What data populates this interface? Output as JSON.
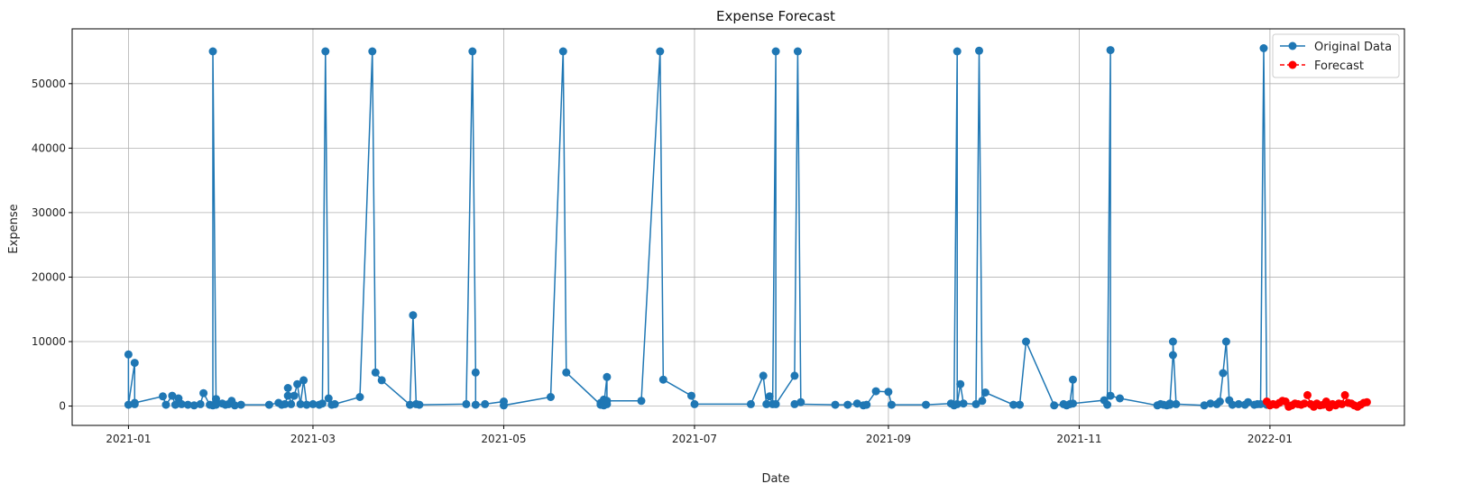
{
  "chart_data": {
    "type": "line",
    "title": "Expense Forecast",
    "xlabel": "Date",
    "ylabel": "Expense",
    "xlim": [
      "2020-12-14",
      "2022-02-13"
    ],
    "ylim": [
      -3000,
      58500
    ],
    "grid": true,
    "legend_position": "top-right",
    "x_ticks": [
      "2021-01",
      "2021-03",
      "2021-05",
      "2021-07",
      "2021-09",
      "2021-11",
      "2022-01"
    ],
    "y_ticks": [
      0,
      10000,
      20000,
      30000,
      40000,
      50000
    ],
    "series": [
      {
        "name": "Original Data",
        "color": "#1f77b4",
        "line_style": "solid",
        "marker": "circle",
        "points": [
          [
            "2021-01-01",
            8000
          ],
          [
            "2021-01-01",
            200
          ],
          [
            "2021-01-03",
            6700
          ],
          [
            "2021-01-03",
            300
          ],
          [
            "2021-01-03",
            500
          ],
          [
            "2021-01-12",
            1500
          ],
          [
            "2021-01-13",
            200
          ],
          [
            "2021-01-15",
            1600
          ],
          [
            "2021-01-16",
            200
          ],
          [
            "2021-01-17",
            1200
          ],
          [
            "2021-01-18",
            300
          ],
          [
            "2021-01-20",
            200
          ],
          [
            "2021-01-22",
            100
          ],
          [
            "2021-01-24",
            300
          ],
          [
            "2021-01-25",
            2000
          ],
          [
            "2021-01-27",
            200
          ],
          [
            "2021-01-28",
            100
          ],
          [
            "2021-01-28",
            55000
          ],
          [
            "2021-01-29",
            1100
          ],
          [
            "2021-01-29",
            200
          ],
          [
            "2021-01-31",
            400
          ],
          [
            "2021-02-01",
            200
          ],
          [
            "2021-02-02",
            300
          ],
          [
            "2021-02-03",
            800
          ],
          [
            "2021-02-04",
            100
          ],
          [
            "2021-02-06",
            200
          ],
          [
            "2021-02-15",
            200
          ],
          [
            "2021-02-18",
            500
          ],
          [
            "2021-02-19",
            200
          ],
          [
            "2021-02-20",
            300
          ],
          [
            "2021-02-21",
            1600
          ],
          [
            "2021-02-21",
            2800
          ],
          [
            "2021-02-22",
            300
          ],
          [
            "2021-02-23",
            1600
          ],
          [
            "2021-02-24",
            3400
          ],
          [
            "2021-02-25",
            300
          ],
          [
            "2021-02-26",
            4000
          ],
          [
            "2021-02-27",
            200
          ],
          [
            "2021-03-01",
            300
          ],
          [
            "2021-03-03",
            200
          ],
          [
            "2021-03-04",
            400
          ],
          [
            "2021-03-05",
            55000
          ],
          [
            "2021-03-06",
            1200
          ],
          [
            "2021-03-07",
            200
          ],
          [
            "2021-03-08",
            300
          ],
          [
            "2021-03-16",
            1400
          ],
          [
            "2021-03-20",
            55000
          ],
          [
            "2021-03-21",
            5200
          ],
          [
            "2021-03-23",
            4000
          ],
          [
            "2021-04-01",
            200
          ],
          [
            "2021-04-02",
            14100
          ],
          [
            "2021-04-03",
            300
          ],
          [
            "2021-04-04",
            200
          ],
          [
            "2021-04-19",
            300
          ],
          [
            "2021-04-21",
            55000
          ],
          [
            "2021-04-22",
            5200
          ],
          [
            "2021-04-22",
            200
          ],
          [
            "2021-04-25",
            300
          ],
          [
            "2021-05-01",
            700
          ],
          [
            "2021-05-01",
            100
          ],
          [
            "2021-05-16",
            1400
          ],
          [
            "2021-05-20",
            55000
          ],
          [
            "2021-05-21",
            5200
          ],
          [
            "2021-06-01",
            200
          ],
          [
            "2021-06-01",
            500
          ],
          [
            "2021-06-02",
            1000
          ],
          [
            "2021-06-02",
            100
          ],
          [
            "2021-06-03",
            4500
          ],
          [
            "2021-06-03",
            300
          ],
          [
            "2021-06-03",
            800
          ],
          [
            "2021-06-14",
            800
          ],
          [
            "2021-06-20",
            55000
          ],
          [
            "2021-06-21",
            4100
          ],
          [
            "2021-06-30",
            1600
          ],
          [
            "2021-07-01",
            300
          ],
          [
            "2021-07-19",
            300
          ],
          [
            "2021-07-23",
            4700
          ],
          [
            "2021-07-24",
            300
          ],
          [
            "2021-07-25",
            1500
          ],
          [
            "2021-07-26",
            300
          ],
          [
            "2021-07-27",
            55000
          ],
          [
            "2021-07-27",
            300
          ],
          [
            "2021-08-02",
            4700
          ],
          [
            "2021-08-03",
            55000
          ],
          [
            "2021-08-04",
            600
          ],
          [
            "2021-08-02",
            300
          ],
          [
            "2021-08-15",
            200
          ],
          [
            "2021-08-19",
            200
          ],
          [
            "2021-08-22",
            400
          ],
          [
            "2021-08-24",
            100
          ],
          [
            "2021-08-25",
            200
          ],
          [
            "2021-08-28",
            2300
          ],
          [
            "2021-09-01",
            2200
          ],
          [
            "2021-09-02",
            200
          ],
          [
            "2021-09-13",
            200
          ],
          [
            "2021-09-21",
            400
          ],
          [
            "2021-09-22",
            100
          ],
          [
            "2021-09-23",
            55000
          ],
          [
            "2021-09-23",
            300
          ],
          [
            "2021-09-24",
            3400
          ],
          [
            "2021-09-25",
            400
          ],
          [
            "2021-09-29",
            300
          ],
          [
            "2021-09-30",
            55100
          ],
          [
            "2021-10-01",
            800
          ],
          [
            "2021-10-02",
            2100
          ],
          [
            "2021-10-11",
            200
          ],
          [
            "2021-10-13",
            200
          ],
          [
            "2021-10-15",
            10000
          ],
          [
            "2021-10-24",
            100
          ],
          [
            "2021-10-27",
            300
          ],
          [
            "2021-10-28",
            100
          ],
          [
            "2021-10-29",
            300
          ],
          [
            "2021-10-30",
            4100
          ],
          [
            "2021-10-30",
            400
          ],
          [
            "2021-11-09",
            900
          ],
          [
            "2021-11-10",
            200
          ],
          [
            "2021-11-11",
            55200
          ],
          [
            "2021-11-11",
            1600
          ],
          [
            "2021-11-14",
            1200
          ],
          [
            "2021-11-26",
            100
          ],
          [
            "2021-11-27",
            300
          ],
          [
            "2021-11-28",
            200
          ],
          [
            "2021-11-29",
            100
          ],
          [
            "2021-11-30",
            400
          ],
          [
            "2021-11-30",
            200
          ],
          [
            "2021-12-01",
            7900
          ],
          [
            "2021-12-01",
            10000
          ],
          [
            "2021-12-02",
            300
          ],
          [
            "2021-12-11",
            100
          ],
          [
            "2021-12-13",
            400
          ],
          [
            "2021-12-15",
            300
          ],
          [
            "2021-12-16",
            700
          ],
          [
            "2021-12-17",
            5100
          ],
          [
            "2021-12-18",
            10000
          ],
          [
            "2021-12-19",
            900
          ],
          [
            "2021-12-20",
            200
          ],
          [
            "2021-12-22",
            300
          ],
          [
            "2021-12-24",
            200
          ],
          [
            "2021-12-25",
            600
          ],
          [
            "2021-12-27",
            200
          ],
          [
            "2021-12-28",
            300
          ],
          [
            "2021-12-29",
            300
          ],
          [
            "2021-12-30",
            55500
          ],
          [
            "2021-12-31",
            200
          ]
        ]
      },
      {
        "name": "Forecast",
        "color": "#ff0000",
        "line_style": "dashed",
        "marker": "circle",
        "points": [
          [
            "2021-12-31",
            700
          ],
          [
            "2022-01-01",
            100
          ],
          [
            "2022-01-02",
            300
          ],
          [
            "2022-01-03",
            200
          ],
          [
            "2022-01-04",
            500
          ],
          [
            "2022-01-05",
            800
          ],
          [
            "2022-01-06",
            700
          ],
          [
            "2022-01-07",
            -100
          ],
          [
            "2022-01-08",
            100
          ],
          [
            "2022-01-09",
            400
          ],
          [
            "2022-01-10",
            300
          ],
          [
            "2022-01-11",
            200
          ],
          [
            "2022-01-12",
            400
          ],
          [
            "2022-01-13",
            1700
          ],
          [
            "2022-01-14",
            300
          ],
          [
            "2022-01-15",
            -100
          ],
          [
            "2022-01-16",
            400
          ],
          [
            "2022-01-17",
            100
          ],
          [
            "2022-01-18",
            200
          ],
          [
            "2022-01-19",
            700
          ],
          [
            "2022-01-20",
            -200
          ],
          [
            "2022-01-21",
            300
          ],
          [
            "2022-01-22",
            100
          ],
          [
            "2022-01-23",
            400
          ],
          [
            "2022-01-24",
            300
          ],
          [
            "2022-01-25",
            1700
          ],
          [
            "2022-01-26",
            500
          ],
          [
            "2022-01-27",
            400
          ],
          [
            "2022-01-28",
            100
          ],
          [
            "2022-01-29",
            -100
          ],
          [
            "2022-01-30",
            200
          ],
          [
            "2022-01-31",
            500
          ],
          [
            "2022-02-01",
            600
          ]
        ]
      }
    ]
  }
}
